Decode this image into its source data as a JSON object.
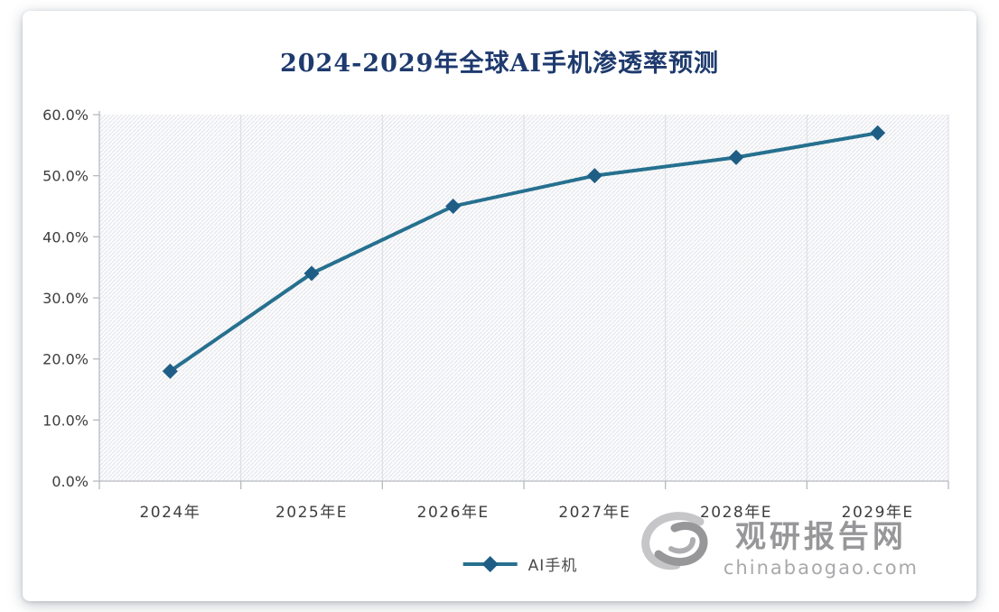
{
  "title": "2024-2029年全球AI手机渗透率预测",
  "legend": {
    "label": "AI手机"
  },
  "watermark": {
    "name": "观研报告网",
    "url": "chinabaogao.com"
  },
  "colors": {
    "line": "#26708f",
    "marker": "#1e5e86",
    "title": "#1e3a6e",
    "axis_text": "#3d3d3d",
    "grid": "#d9dce2",
    "axis_line": "#b6bac1",
    "watermark_gray": "#8f8f92"
  },
  "chart_data": {
    "type": "line",
    "title": "2024-2029年全球AI手机渗透率预测",
    "categories": [
      "2024年",
      "2025年E",
      "2026年E",
      "2027年E",
      "2028年E",
      "2029年E"
    ],
    "series": [
      {
        "name": "AI手机",
        "values": [
          18,
          34,
          45,
          50,
          53,
          57
        ]
      }
    ],
    "unit": "%",
    "xlabel": "",
    "ylabel": "",
    "ylim": [
      0,
      60
    ],
    "ytick_step": 10,
    "ytick_labels": [
      "0.0%",
      "10.0%",
      "20.0%",
      "30.0%",
      "40.0%",
      "50.0%",
      "60.0%"
    ],
    "grid": "vertical-category-boundaries",
    "plot_background": "diagonal-hatch",
    "marker": "diamond",
    "legend_position": "bottom-center"
  }
}
